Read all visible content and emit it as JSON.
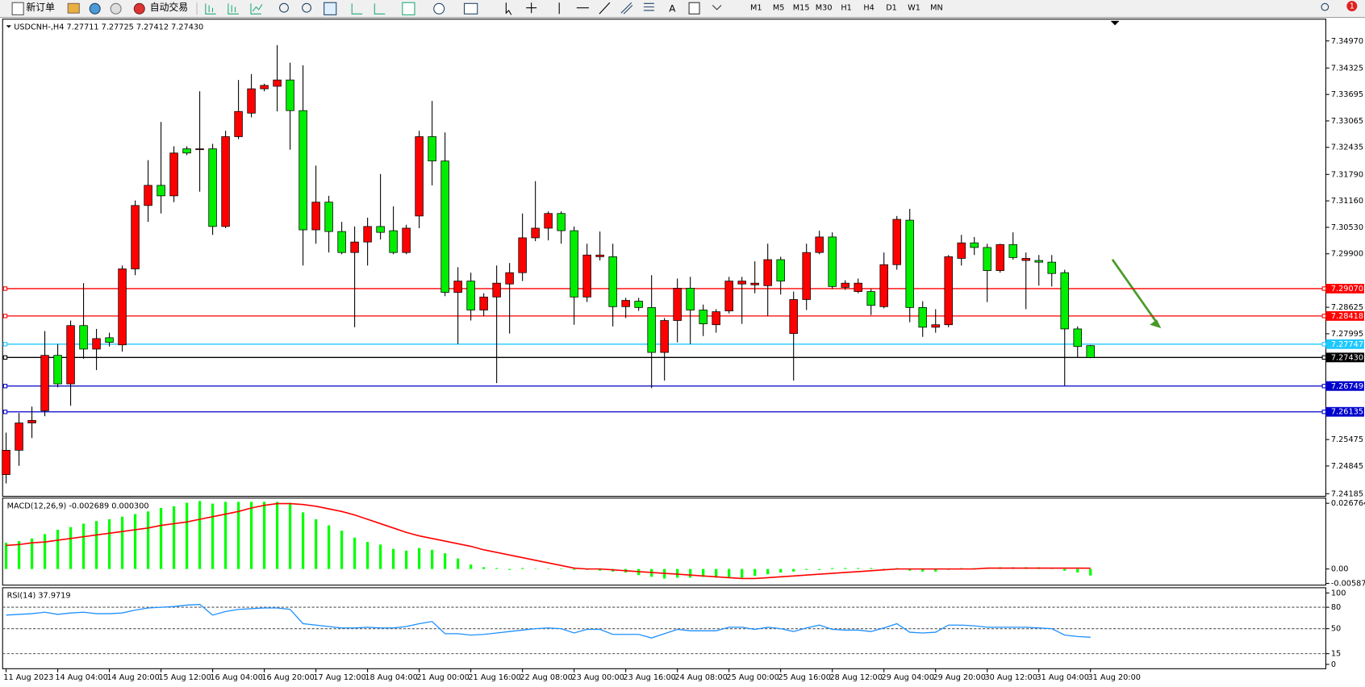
{
  "toolbar": {
    "new_order": "新订单",
    "auto_trading": "自动交易",
    "text_tool": "A",
    "timeframes": [
      "M1",
      "M5",
      "M15",
      "M30",
      "H1",
      "H4",
      "D1",
      "W1",
      "MN"
    ],
    "badge": "1"
  },
  "chart_data": [
    {
      "type": "candlestick",
      "title": "USDCNH-,H4 7.27711 7.27725 7.27412 7.27430",
      "up_color": "#ff0000",
      "down_color": "#00ee00",
      "categories": [
        "11 Aug 2023",
        null,
        null,
        null,
        "14 Aug 04:00",
        null,
        null,
        null,
        "14 Aug 20:00",
        null,
        null,
        null,
        "15 Aug 12:00",
        null,
        null,
        null,
        "16 Aug 04:00",
        null,
        null,
        null,
        "16 Aug 20:00",
        null,
        null,
        null,
        "17 Aug 12:00",
        null,
        null,
        null,
        "18 Aug 04:00",
        null,
        null,
        null,
        "21 Aug 00:00",
        null,
        null,
        null,
        "21 Aug 16:00",
        null,
        null,
        null,
        "22 Aug 08:00",
        null,
        null,
        null,
        "23 Aug 00:00",
        null,
        null,
        null,
        "23 Aug 16:00",
        null,
        null,
        null,
        "24 Aug 08:00",
        null,
        null,
        null,
        "25 Aug 00:00",
        null,
        null,
        null,
        "25 Aug 16:00",
        null,
        null,
        null,
        "28 Aug 12:00",
        null,
        null,
        null,
        "29 Aug 04:00",
        null,
        null,
        null,
        "29 Aug 20:00",
        null,
        null,
        null,
        "30 Aug 12:00",
        null,
        null,
        null,
        "31 Aug 04:00",
        null,
        null,
        null,
        "31 Aug 20:00"
      ],
      "ohlc": [
        [
          7.2464,
          7.2564,
          7.2443,
          7.2522
        ],
        [
          7.2522,
          7.2611,
          7.2485,
          7.2587
        ],
        [
          7.2587,
          7.2626,
          7.2551,
          7.2593
        ],
        [
          7.2616,
          7.2806,
          7.2603,
          7.2748
        ],
        [
          7.2748,
          7.2775,
          7.2672,
          7.268
        ],
        [
          7.268,
          7.2831,
          7.2628,
          7.2819
        ],
        [
          7.2819,
          7.292,
          7.274,
          7.2763
        ],
        [
          7.2763,
          7.2811,
          7.2713,
          7.2788
        ],
        [
          7.279,
          7.2802,
          7.2769,
          7.2779
        ],
        [
          7.2773,
          7.2962,
          7.2757,
          7.2954
        ],
        [
          7.2954,
          7.3117,
          7.2939,
          7.3105
        ],
        [
          7.3105,
          7.3213,
          7.3066,
          7.3153
        ],
        [
          7.3153,
          7.3304,
          7.3086,
          7.3128
        ],
        [
          7.3128,
          7.3246,
          7.3113,
          7.323
        ],
        [
          7.324,
          7.3246,
          7.3225,
          7.323
        ],
        [
          7.3238,
          7.3377,
          7.3138,
          7.324
        ],
        [
          7.324,
          7.3252,
          7.3035,
          7.3055
        ],
        [
          7.3055,
          7.3283,
          7.3051,
          7.3269
        ],
        [
          7.3269,
          7.3404,
          7.3263,
          7.3329
        ],
        [
          7.3325,
          7.3418,
          7.3315,
          7.3383
        ],
        [
          7.3383,
          7.3395,
          7.3377,
          7.3391
        ],
        [
          7.3389,
          7.3487,
          7.3329,
          7.3404
        ],
        [
          7.3404,
          7.3445,
          7.3238,
          7.3331
        ],
        [
          7.3331,
          7.3439,
          7.2962,
          7.3047
        ],
        [
          7.3047,
          7.32,
          7.3014,
          7.3113
        ],
        [
          7.3113,
          7.3128,
          7.2993,
          7.3043
        ],
        [
          7.3043,
          7.3066,
          7.2989,
          7.2993
        ],
        [
          7.2993,
          7.3055,
          7.2815,
          7.3018
        ],
        [
          7.3018,
          7.3076,
          7.2962,
          7.3055
        ],
        [
          7.3055,
          7.318,
          7.3024,
          7.3041
        ],
        [
          7.3045,
          7.3103,
          7.2989,
          7.2993
        ],
        [
          7.2993,
          7.3059,
          7.2989,
          7.3051
        ],
        [
          7.308,
          7.3283,
          7.3051,
          7.3269
        ],
        [
          7.3269,
          7.3354,
          7.3153,
          7.3211
        ],
        [
          7.3211,
          7.3279,
          7.2889,
          7.2898
        ],
        [
          7.2898,
          7.2958,
          7.2775,
          7.2925
        ],
        [
          7.2925,
          7.2945,
          7.2831,
          7.2856
        ],
        [
          7.2856,
          7.2896,
          7.2842,
          7.2887
        ],
        [
          7.2887,
          7.2962,
          7.2682,
          7.292
        ],
        [
          7.2918,
          7.2968,
          7.28,
          7.2945
        ],
        [
          7.2945,
          7.3086,
          7.2925,
          7.3028
        ],
        [
          7.3028,
          7.3163,
          7.302,
          7.3051
        ],
        [
          7.3051,
          7.3091,
          7.3022,
          7.3086
        ],
        [
          7.3086,
          7.3091,
          7.3014,
          7.3045
        ],
        [
          7.3045,
          7.3055,
          7.2821,
          7.2887
        ],
        [
          7.2887,
          7.3014,
          7.2875,
          7.2987
        ],
        [
          7.2983,
          7.3043,
          7.2974,
          7.2987
        ],
        [
          7.2983,
          7.3014,
          7.2817,
          7.2864
        ],
        [
          7.2864,
          7.2885,
          7.2837,
          7.2879
        ],
        [
          7.2877,
          7.2885,
          7.2854,
          7.2862
        ],
        [
          7.2862,
          7.2939,
          7.267,
          7.2755
        ],
        [
          7.2755,
          7.2837,
          7.2688,
          7.2831
        ],
        [
          7.2831,
          7.2931,
          7.2779,
          7.2908
        ],
        [
          7.2908,
          7.2935,
          7.2775,
          7.2856
        ],
        [
          7.2856,
          7.2869,
          7.2794,
          7.2823
        ],
        [
          7.2821,
          7.2858,
          7.2802,
          7.2852
        ],
        [
          7.2854,
          7.2935,
          7.2848,
          7.2925
        ],
        [
          7.2918,
          7.2935,
          7.2823,
          7.2925
        ],
        [
          7.2916,
          7.2972,
          7.2896,
          7.292
        ],
        [
          7.2914,
          7.3014,
          7.2842,
          7.2976
        ],
        [
          7.2976,
          7.2983,
          7.2893,
          7.2925
        ],
        [
          7.28,
          7.29,
          7.2688,
          7.2881
        ],
        [
          7.2881,
          7.3014,
          7.2856,
          7.2993
        ],
        [
          7.2993,
          7.3045,
          7.2989,
          7.303
        ],
        [
          7.303,
          7.3041,
          7.2906,
          7.2912
        ],
        [
          7.291,
          7.2927,
          7.2904,
          7.292
        ],
        [
          7.29,
          7.2931,
          7.2896,
          7.292
        ],
        [
          7.29,
          7.2906,
          7.2844,
          7.2867
        ],
        [
          7.2864,
          7.2993,
          7.286,
          7.2964
        ],
        [
          7.2964,
          7.308,
          7.2952,
          7.3072
        ],
        [
          7.307,
          7.3097,
          7.2827,
          7.2862
        ],
        [
          7.2862,
          7.2877,
          7.2792,
          7.2815
        ],
        [
          7.2815,
          7.2858,
          7.2802,
          7.2821
        ],
        [
          7.2821,
          7.2987,
          7.2815,
          7.2983
        ],
        [
          7.2979,
          7.3035,
          7.2962,
          7.3016
        ],
        [
          7.3016,
          7.303,
          7.2987,
          7.3005
        ],
        [
          7.3005,
          7.3014,
          7.2875,
          7.295
        ],
        [
          7.295,
          7.3014,
          7.2945,
          7.3012
        ],
        [
          7.3012,
          7.3041,
          7.2976,
          7.2981
        ],
        [
          7.2974,
          7.2993,
          7.2858,
          7.2979
        ],
        [
          7.2974,
          7.2987,
          7.2914,
          7.297
        ],
        [
          7.297,
          7.2987,
          7.2912,
          7.2943
        ],
        [
          7.2945,
          7.2952,
          7.2676,
          7.2811
        ],
        [
          7.2811,
          7.2817,
          7.2742,
          7.2769
        ],
        [
          7.27711,
          7.27725,
          7.27412,
          7.2743
        ]
      ],
      "ylim": [
        7.24185,
        7.3497
      ],
      "yticks": [
        {
          "value": 7.3497,
          "label": "7.34970"
        },
        7.34325,
        7.33695,
        7.33065,
        7.32435,
        {
          "value": 7.3179,
          "label": "7.31790"
        },
        {
          "value": 7.3116,
          "label": "7.31160"
        },
        {
          "value": 7.3053,
          "label": "7.30530"
        },
        {
          "value": 7.299,
          "label": "7.29900"
        },
        7.28625,
        7.27995,
        7.25475,
        7.24845,
        7.24185
      ],
      "price_lines": [
        {
          "value": 7.2907,
          "label": "7.29070",
          "color": "#ff0000"
        },
        {
          "value": 7.28418,
          "label": "7.28418",
          "color": "#ff0000"
        },
        {
          "value": 7.27747,
          "label": "7.27747",
          "color": "#1ec8ff"
        },
        {
          "value": 7.2743,
          "label": "7.27430",
          "color": "#000000"
        },
        {
          "value": 7.26749,
          "label": "7.26749",
          "color": "#0000cd"
        },
        {
          "value": 7.26135,
          "label": "7.26135",
          "color": "#0000cd"
        }
      ]
    },
    {
      "type": "macd",
      "title": "MACD(12,26,9) -0.002689 0.000300",
      "histogram": {
        "color": "#00ff00",
        "values": [
          0.01065,
          0.01136,
          0.01243,
          0.0142,
          0.01598,
          0.01704,
          0.01846,
          0.01953,
          0.02024,
          0.0213,
          0.02237,
          0.02343,
          0.02485,
          0.02556,
          0.02698,
          0.02769,
          0.02663,
          0.02734,
          0.02734,
          0.02734,
          0.02734,
          0.02734,
          0.02698,
          0.02308,
          0.02024,
          0.01775,
          0.01562,
          0.01278,
          0.01101,
          0.00994,
          0.00817,
          0.00746,
          0.00852,
          0.00781,
          0.00639,
          0.00426,
          0.00178,
          0.00071,
          0.00036,
          -0.00036,
          0.00036,
          0.0001,
          0.0001,
          0.0001,
          -0.00036,
          -0.00036,
          -0.00071,
          -0.00107,
          -0.00142,
          -0.00249,
          -0.0032,
          -0.0039,
          -0.00355,
          -0.00355,
          -0.0032,
          -0.00355,
          -0.00355,
          -0.00355,
          -0.00284,
          -0.00213,
          -0.00142,
          -0.00107,
          -0.00036,
          -0.00036,
          0.00036,
          0.00036,
          0.00036,
          0.00036,
          0.0001,
          0.00036,
          -0.00071,
          -0.00107,
          -0.00107,
          -0.00036,
          0.00036,
          0.00036,
          0.00036,
          0.00071,
          0.00071,
          0.00071,
          0.00071,
          0.00036,
          -0.00071,
          -0.00142,
          -0.002689
        ]
      },
      "signal": {
        "color": "#ff0000",
        "values": [
          0.00959,
          0.00994,
          0.01065,
          0.011,
          0.01172,
          0.01243,
          0.01314,
          0.01385,
          0.01456,
          0.01527,
          0.01598,
          0.01669,
          0.01775,
          0.01846,
          0.01917,
          0.02024,
          0.0213,
          0.02237,
          0.02343,
          0.02485,
          0.02592,
          0.02663,
          0.02663,
          0.02627,
          0.02556,
          0.0245,
          0.02343,
          0.02201,
          0.02024,
          0.01846,
          0.01669,
          0.01491,
          0.01349,
          0.01243,
          0.01136,
          0.0103,
          0.00923,
          0.00781,
          0.00675,
          0.00568,
          0.00462,
          0.00355,
          0.00249,
          0.00142,
          0.00036,
          0,
          0,
          -0.00036,
          -0.00071,
          -0.00107,
          -0.00142,
          -0.00178,
          -0.00213,
          -0.00249,
          -0.00284,
          -0.0032,
          -0.00355,
          -0.0039,
          -0.0039,
          -0.00355,
          -0.0032,
          -0.00284,
          -0.00249,
          -0.00213,
          -0.00178,
          -0.00142,
          -0.00107,
          -0.00071,
          -0.00036,
          0,
          0,
          0,
          0,
          0,
          0,
          0,
          0.00036,
          0.00036,
          0.00036,
          0.00036,
          0.00036,
          0.00036,
          0.00036,
          0.00036,
          0.0003
        ]
      },
      "ylim": [
        -0.005872,
        0.026764
      ],
      "yticks": [
        0.026764,
        {
          "value": 0,
          "label": "0.00"
        },
        -0.005872
      ]
    },
    {
      "type": "line",
      "title": "RSI(14) 37.9719",
      "color": "#1e90ff",
      "values": [
        69,
        70,
        71,
        73,
        70,
        72,
        73,
        71,
        71,
        72,
        76,
        79,
        80,
        81,
        83,
        84,
        69,
        74,
        77,
        78,
        79,
        79,
        77,
        57,
        55,
        53,
        51,
        51,
        52,
        51,
        51,
        53,
        57,
        60,
        43,
        43,
        41,
        42,
        44,
        46,
        48,
        50,
        51,
        50,
        44,
        49,
        49,
        42,
        42,
        42,
        37,
        43,
        49,
        47,
        47,
        47,
        52,
        52,
        49,
        52,
        50,
        46,
        51,
        55,
        49,
        48,
        48,
        46,
        51,
        57,
        45,
        44,
        45,
        55,
        55,
        54,
        52,
        52,
        52,
        52,
        51,
        50,
        41,
        39,
        37.9719
      ],
      "ylim": [
        0,
        100
      ],
      "yticks": [
        100,
        80,
        50,
        15,
        0
      ]
    }
  ]
}
